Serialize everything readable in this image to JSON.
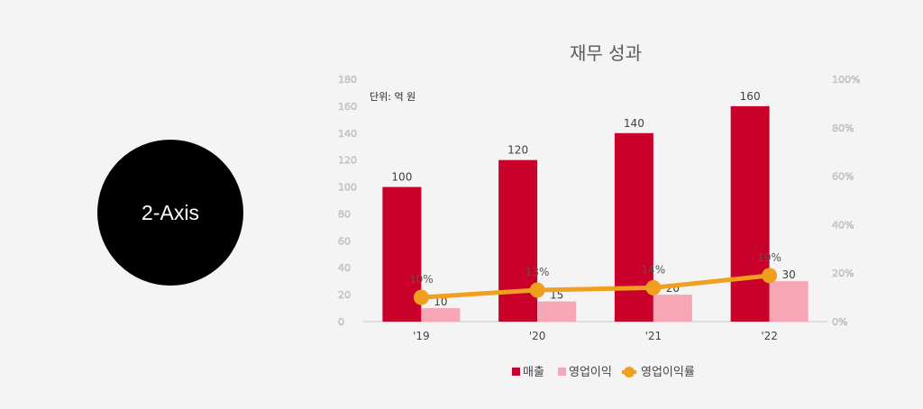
{
  "badge": {
    "label": "2-Axis"
  },
  "colors": {
    "revenue": "#c8002a",
    "op_income": "#f7a6b6",
    "op_margin": "#f0a01e",
    "axis": "#c8c8c8"
  },
  "chart_data": {
    "type": "bar",
    "title": "재무 성과",
    "unit_note": "단위: 억 원",
    "categories": [
      "'19",
      "'20",
      "'21",
      "'22"
    ],
    "series": [
      {
        "name": "매출",
        "kind": "bar",
        "axis": "left",
        "values": [
          100,
          120,
          140,
          160
        ]
      },
      {
        "name": "영업이익",
        "kind": "bar",
        "axis": "left",
        "values": [
          10,
          15,
          20,
          30
        ]
      },
      {
        "name": "영업이익률",
        "kind": "line",
        "axis": "right",
        "values": [
          10,
          13,
          14,
          19
        ],
        "labels": [
          "10%",
          "13%",
          "14%",
          "19%"
        ]
      }
    ],
    "y_left": {
      "min": 0,
      "max": 180,
      "step": 20,
      "ticks": [
        "0",
        "20",
        "40",
        "60",
        "80",
        "100",
        "120",
        "140",
        "160",
        "180"
      ]
    },
    "y_right": {
      "min": 0,
      "max": 100,
      "step": 20,
      "ticks": [
        "0%",
        "20%",
        "40%",
        "60%",
        "80%",
        "100%"
      ]
    },
    "legend_position": "bottom"
  }
}
